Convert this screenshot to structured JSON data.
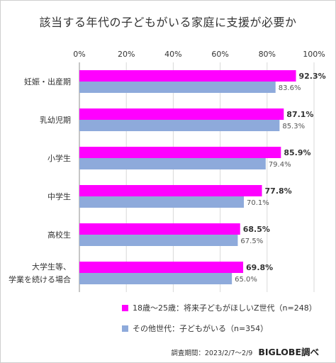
{
  "title": "該当する年代の子どもがいる家庭に支援が必要か",
  "footer": {
    "survey_period": "調査期間：2023/2/7～2/9",
    "brand": "BIGLOBE調べ"
  },
  "colors": {
    "series_a": "#ff00ff",
    "series_b": "#8eaadb"
  },
  "chart_data": {
    "type": "bar",
    "orientation": "horizontal",
    "categories": [
      [
        "妊娠・出産期"
      ],
      [
        "乳幼児期"
      ],
      [
        "小学生"
      ],
      [
        "中学生"
      ],
      [
        "高校生"
      ],
      [
        "大学生等、",
        "学業を続ける場合"
      ]
    ],
    "series": [
      {
        "name": "18歳～25歳：将来子どもがほしいZ世代（n=248）",
        "values": [
          92.3,
          87.1,
          85.9,
          77.8,
          68.5,
          69.8
        ],
        "color": "#ff00ff"
      },
      {
        "name": "その他世代：子どもがいる（n=354）",
        "values": [
          83.6,
          85.3,
          79.4,
          70.1,
          67.5,
          65.0
        ],
        "color": "#8eaadb"
      }
    ],
    "xlim": [
      0,
      100
    ],
    "ticks": [
      0,
      20,
      40,
      60,
      80,
      100
    ],
    "tick_labels": [
      "0%",
      "20%",
      "40%",
      "60%",
      "80%",
      "100%"
    ],
    "grid": true,
    "legend": "bottom"
  }
}
